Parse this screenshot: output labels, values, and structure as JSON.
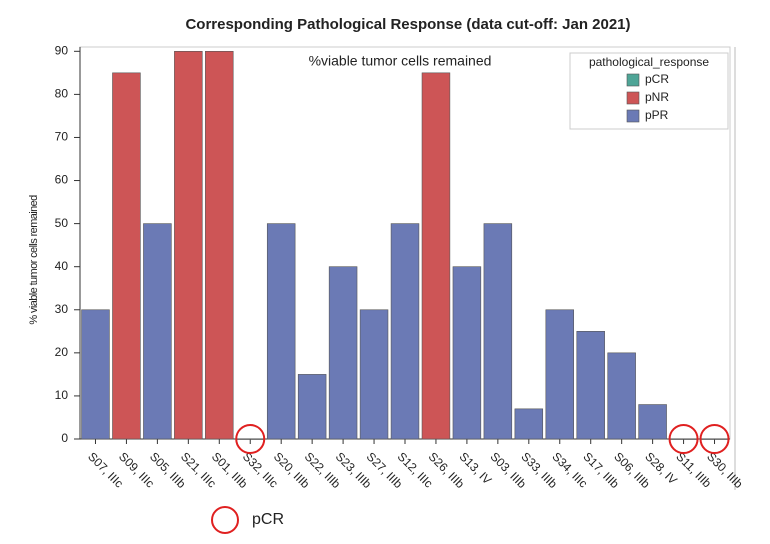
{
  "chart_data": {
    "type": "bar",
    "title": "Corresponding Pathological Response (data cut-off: Jan 2021)",
    "annotation": "%viable tumor cells remained",
    "y_label": "% viable tumor cells remained",
    "legend_title": "pathological_response",
    "legend_position": "upper right",
    "bottom_note": "pCR",
    "categories": [
      "S07, IIIc",
      "S09, IIIc",
      "S05, IIIb",
      "S21, IIIc",
      "S01, IIIb",
      "S32, IIIc",
      "S20, IIIb",
      "S22, IIIb",
      "S23, IIIb",
      "S27, IIIb",
      "S12, IIIc",
      "S26, IIIb",
      "S13, IV",
      "S03, IIIb",
      "S33, IIIb",
      "S34, IIIc",
      "S17, IIIb",
      "S06, IIIb",
      "S28, IV",
      "S11, IIIb",
      "S30, IIIb"
    ],
    "series": [
      {
        "name": "pCR",
        "color": "#4fa597",
        "values": [
          null,
          null,
          null,
          null,
          null,
          0,
          null,
          null,
          null,
          null,
          null,
          null,
          null,
          null,
          null,
          null,
          null,
          null,
          null,
          0,
          0
        ]
      },
      {
        "name": "pNR",
        "color": "#cd5556",
        "values": [
          null,
          85,
          null,
          90,
          90,
          null,
          null,
          null,
          null,
          null,
          null,
          85,
          null,
          null,
          null,
          null,
          null,
          null,
          null,
          null,
          null
        ]
      },
      {
        "name": "pPR",
        "color": "#6b7ab5",
        "values": [
          30,
          null,
          50,
          null,
          null,
          null,
          50,
          15,
          40,
          30,
          50,
          null,
          40,
          50,
          7,
          30,
          25,
          20,
          8,
          null,
          null
        ]
      }
    ],
    "ylim": [
      0,
      91
    ],
    "yticks": [
      0,
      10,
      20,
      30,
      40,
      50,
      60,
      70,
      80,
      90
    ]
  }
}
